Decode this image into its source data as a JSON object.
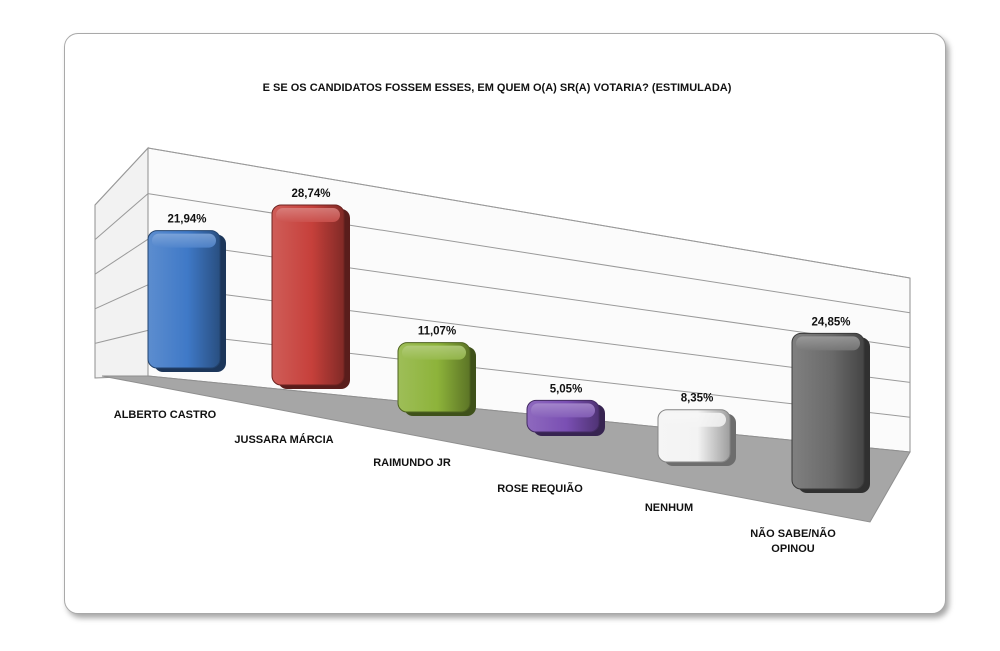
{
  "chart_data": {
    "type": "bar",
    "title": "E SE OS CANDIDATOS FOSSEM ESSES, EM QUEM O(A) SR(A) VOTARIA? (ESTIMULADA)",
    "categories": [
      "ALBERTO CASTRO",
      "JUSSARA MÁRCIA",
      "RAIMUNDO JR",
      "ROSE REQUIÃO",
      "NENHUM",
      "NÃO SABE/NÃO OPINOU"
    ],
    "values": [
      21.94,
      28.74,
      11.07,
      5.05,
      8.35,
      24.85
    ],
    "value_labels": [
      "21,94%",
      "28,74%",
      "11,07%",
      "5,05%",
      "8,35%",
      "24,85%"
    ],
    "unit": "%",
    "ylim": [
      0,
      35
    ],
    "grid": true,
    "legend": "none",
    "colors": [
      "#3f79c7",
      "#c6403b",
      "#8db33a",
      "#7a4fb3",
      "#f3f3f3",
      "#6a6a6a"
    ]
  }
}
